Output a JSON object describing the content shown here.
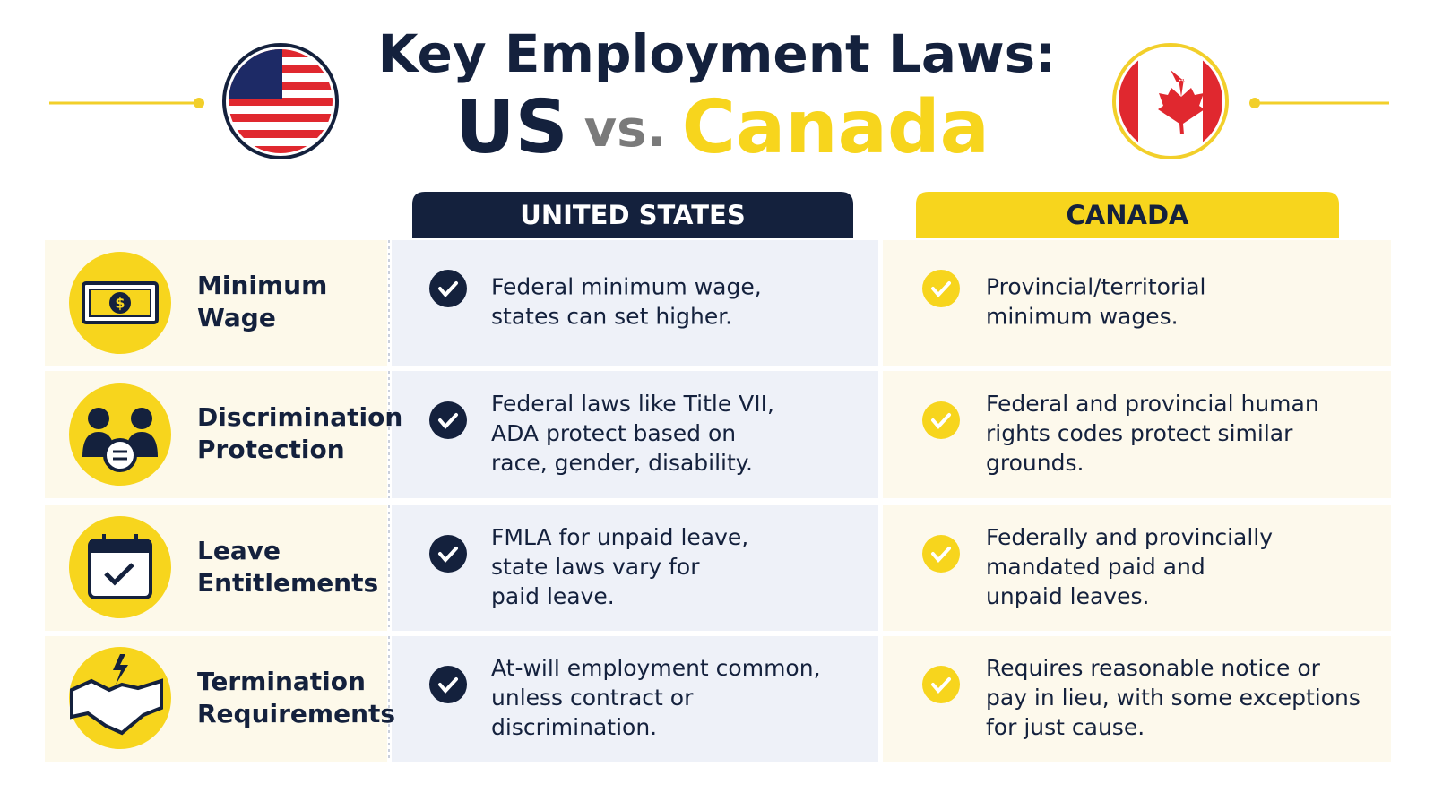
{
  "header": {
    "title": "Key Employment Laws:",
    "us": "US",
    "vs": "vs.",
    "canada": "Canada"
  },
  "columns": {
    "us": "UNITED STATES",
    "canada": "CANADA"
  },
  "rows": [
    {
      "topic": [
        "Minimum",
        "Wage"
      ],
      "us": [
        "Federal minimum wage,",
        "states can set higher."
      ],
      "canada": [
        "Provincial/territorial",
        "minimum wages."
      ]
    },
    {
      "topic": [
        "Discrimination",
        "Protection"
      ],
      "us": [
        "Federal laws like Title VII,",
        "ADA protect based on",
        "race, gender, disability."
      ],
      "canada": [
        "Federal and provincial human",
        "rights codes protect similar",
        "grounds."
      ]
    },
    {
      "topic": [
        "Leave",
        "Entitlements"
      ],
      "us": [
        "FMLA for unpaid leave,",
        "state laws vary for",
        "paid leave."
      ],
      "canada": [
        "Federally and provincially",
        "mandated paid and",
        "unpaid leaves."
      ]
    },
    {
      "topic": [
        "Termination",
        "Requirements"
      ],
      "us": [
        "At-will employment common,",
        "unless contract or",
        "discrimination."
      ],
      "canada": [
        "Requires reasonable notice or",
        "pay in lieu, with some exceptions",
        "for just cause."
      ]
    }
  ]
}
